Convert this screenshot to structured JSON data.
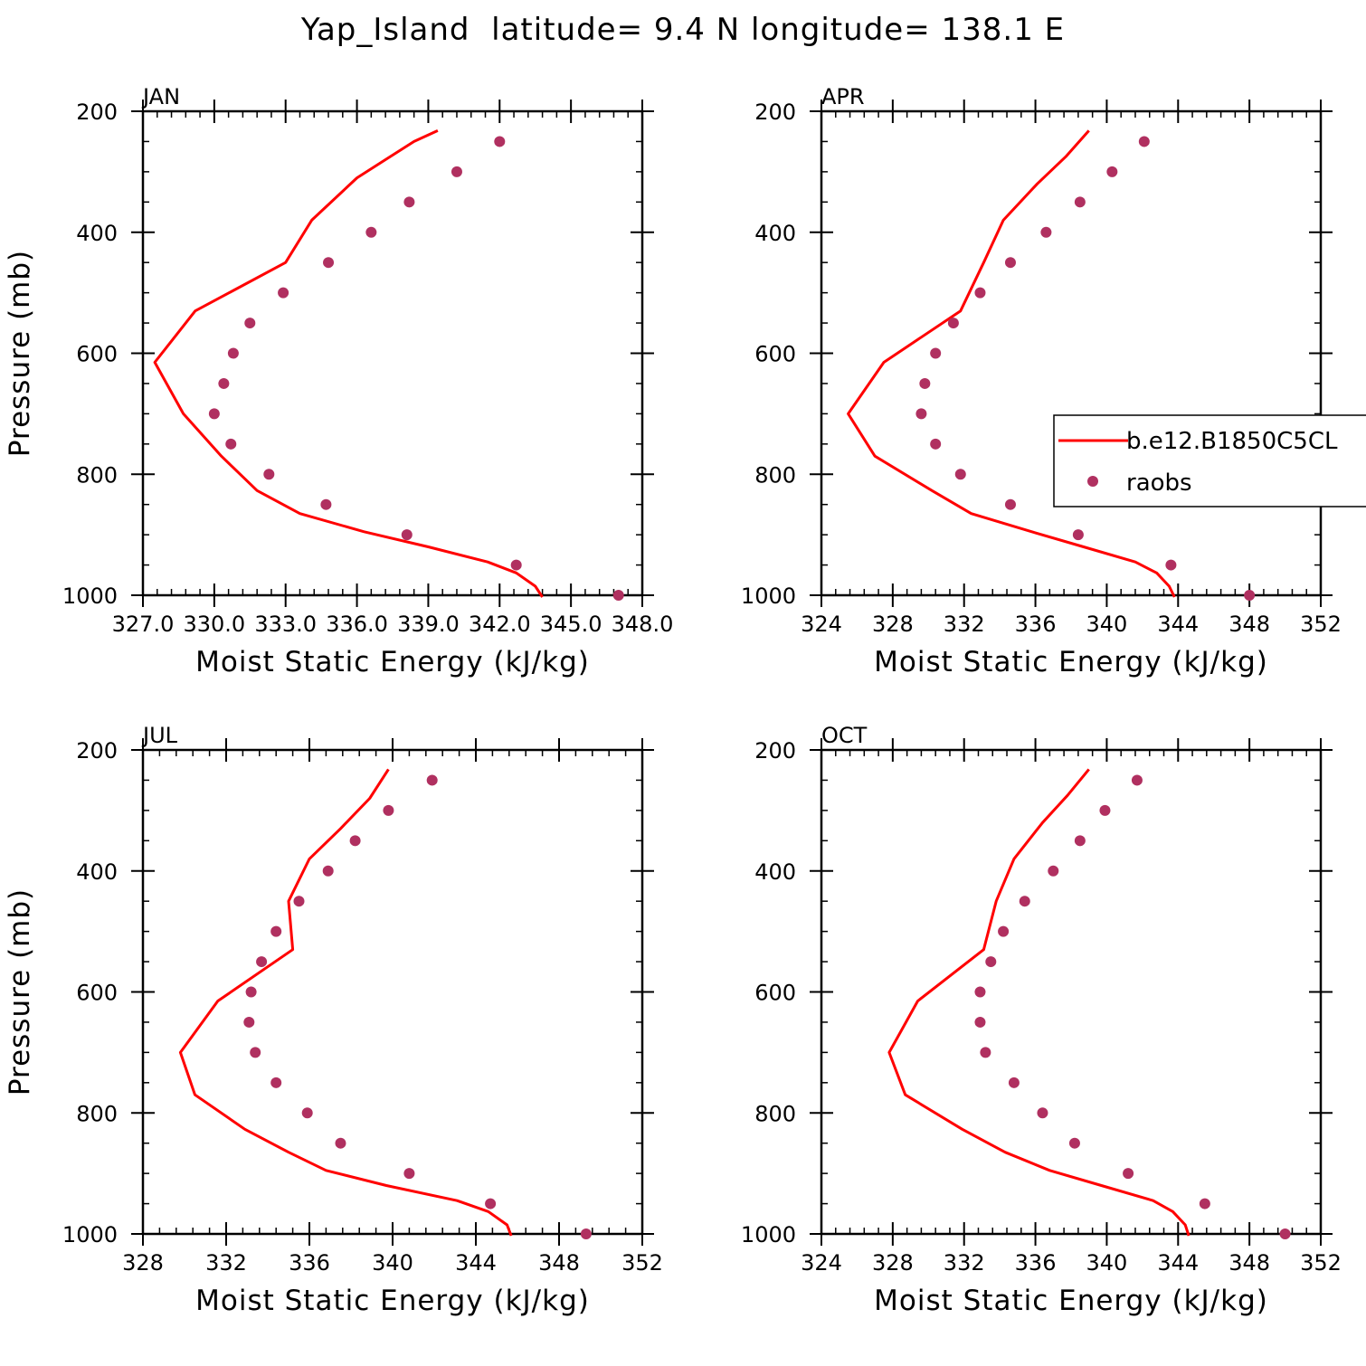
{
  "figure": {
    "title": "Yap_Island  latitude= 9.4 N longitude= 138.1 E"
  },
  "legend": {
    "model_label": "b.e12.B1850C5CL",
    "obs_label": "raobs"
  },
  "colors": {
    "model_line": "#ff0000",
    "obs_marker": "#b03060"
  },
  "chart_data": [
    {
      "type": "line",
      "panel": "JAN",
      "xlabel": "Moist Static Energy (kJ/kg)",
      "ylabel": "Pressure (mb)",
      "xlim": [
        327.0,
        348.0
      ],
      "ylim": [
        1000,
        200
      ],
      "x_ticks": [
        "327.0",
        "330.0",
        "333.0",
        "336.0",
        "339.0",
        "342.0",
        "345.0",
        "348.0"
      ],
      "y_ticks": [
        200,
        400,
        600,
        800,
        1000
      ],
      "series": [
        {
          "name": "b.e12.B1850C5CL",
          "kind": "line",
          "x": [
            343.8,
            343.5,
            342.7,
            341.5,
            339.0,
            336.3,
            333.6,
            331.8,
            330.3,
            328.7,
            327.5,
            329.2,
            333.0,
            334.1,
            336.0,
            337.2,
            338.4,
            339.4
          ],
          "y": [
            1003,
            985,
            963,
            945,
            920,
            895,
            865,
            827,
            770,
            700,
            615,
            530,
            450,
            380,
            310,
            280,
            250,
            232
          ]
        },
        {
          "name": "raobs",
          "kind": "scatter",
          "x": [
            347.0,
            342.7,
            338.1,
            334.7,
            332.3,
            330.7,
            330.0,
            330.4,
            330.8,
            331.5,
            332.9,
            334.8,
            336.6,
            338.2,
            340.2,
            342.0
          ],
          "y": [
            1000,
            950,
            900,
            850,
            800,
            750,
            700,
            650,
            600,
            550,
            500,
            450,
            400,
            350,
            300,
            250
          ]
        }
      ]
    },
    {
      "type": "line",
      "panel": "APR",
      "xlabel": "Moist Static Energy (kJ/kg)",
      "ylabel": "",
      "xlim": [
        324,
        352
      ],
      "ylim": [
        1000,
        200
      ],
      "x_ticks": [
        "324",
        "328",
        "332",
        "336",
        "340",
        "344",
        "348",
        "352"
      ],
      "y_ticks": [
        200,
        400,
        600,
        800,
        1000
      ],
      "series": [
        {
          "name": "b.e12.B1850C5CL",
          "kind": "line",
          "x": [
            343.8,
            343.5,
            342.8,
            341.6,
            338.7,
            335.8,
            332.4,
            330.2,
            327.0,
            325.5,
            327.5,
            331.8,
            333.1,
            334.2,
            336.1,
            337.7,
            339.0
          ],
          "y": [
            1003,
            985,
            963,
            945,
            920,
            895,
            865,
            827,
            770,
            700,
            615,
            530,
            450,
            380,
            320,
            275,
            232
          ]
        },
        {
          "name": "raobs",
          "kind": "scatter",
          "x": [
            348.0,
            343.6,
            338.4,
            334.6,
            331.8,
            330.4,
            329.6,
            329.8,
            330.4,
            331.4,
            332.9,
            334.6,
            336.6,
            338.5,
            340.3,
            342.1
          ],
          "y": [
            1000,
            950,
            900,
            850,
            800,
            750,
            700,
            650,
            600,
            550,
            500,
            450,
            400,
            350,
            300,
            250
          ]
        }
      ]
    },
    {
      "type": "line",
      "panel": "JUL",
      "xlabel": "Moist Static Energy (kJ/kg)",
      "ylabel": "Pressure (mb)",
      "xlim": [
        328,
        352
      ],
      "ylim": [
        1000,
        200
      ],
      "x_ticks": [
        "328",
        "332",
        "336",
        "340",
        "344",
        "348",
        "352"
      ],
      "y_ticks": [
        200,
        400,
        600,
        800,
        1000
      ],
      "series": [
        {
          "name": "b.e12.B1850C5CL",
          "kind": "line",
          "x": [
            345.7,
            345.5,
            344.6,
            343.1,
            339.7,
            336.8,
            335.0,
            332.9,
            330.5,
            329.8,
            331.6,
            335.2,
            335.0,
            336.0,
            337.5,
            338.9,
            339.8
          ],
          "y": [
            1003,
            985,
            963,
            945,
            920,
            895,
            865,
            827,
            770,
            700,
            615,
            530,
            450,
            380,
            330,
            280,
            232
          ]
        },
        {
          "name": "raobs",
          "kind": "scatter",
          "x": [
            349.3,
            344.7,
            340.8,
            337.5,
            335.9,
            334.4,
            333.4,
            333.1,
            333.2,
            333.7,
            334.4,
            335.5,
            336.9,
            338.2,
            339.8,
            341.9
          ],
          "y": [
            1000,
            950,
            900,
            850,
            800,
            750,
            700,
            650,
            600,
            550,
            500,
            450,
            400,
            350,
            300,
            250
          ]
        }
      ]
    },
    {
      "type": "line",
      "panel": "OCT",
      "xlabel": "Moist Static Energy (kJ/kg)",
      "ylabel": "",
      "xlim": [
        324,
        352
      ],
      "ylim": [
        1000,
        200
      ],
      "x_ticks": [
        "324",
        "328",
        "332",
        "336",
        "340",
        "344",
        "348",
        "352"
      ],
      "y_ticks": [
        200,
        400,
        600,
        800,
        1000
      ],
      "series": [
        {
          "name": "b.e12.B1850C5CL",
          "kind": "line",
          "x": [
            344.6,
            344.4,
            343.7,
            342.6,
            339.7,
            336.8,
            334.3,
            331.9,
            328.7,
            327.8,
            329.4,
            333.1,
            333.8,
            334.8,
            336.4,
            337.8,
            339.0
          ],
          "y": [
            1003,
            985,
            963,
            945,
            920,
            895,
            865,
            827,
            770,
            700,
            615,
            530,
            450,
            380,
            320,
            275,
            232
          ]
        },
        {
          "name": "raobs",
          "kind": "scatter",
          "x": [
            350.0,
            345.5,
            341.2,
            338.2,
            336.4,
            334.8,
            333.2,
            332.9,
            332.9,
            333.5,
            334.2,
            335.4,
            337.0,
            338.5,
            339.9,
            341.7
          ],
          "y": [
            1000,
            950,
            900,
            850,
            800,
            750,
            700,
            650,
            600,
            550,
            500,
            450,
            400,
            350,
            300,
            250
          ]
        }
      ]
    }
  ]
}
